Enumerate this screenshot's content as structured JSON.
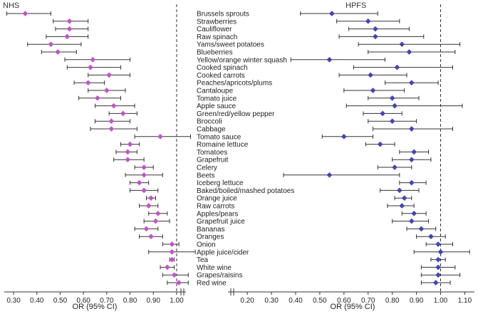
{
  "chart_data": {
    "type": "forest",
    "foods": [
      "Brussels sprouts",
      "Strawberries",
      "Cauliflower",
      "Raw spinach",
      "Yams/sweet potatoes",
      "Blueberries",
      "Yellow/orange winter squash",
      "Cooked spinach",
      "Cooked carrots",
      "Peaches/apricots/plums",
      "Cantaloupe",
      "Tomato juice",
      "Apple sauce",
      "Green/red/yellow pepper",
      "Broccoli",
      "Cabbage",
      "Tomato sauce",
      "Romaine lettuce",
      "Tomatoes",
      "Grapefruit",
      "Celery",
      "Beets",
      "Iceberg lettuce",
      "Baked/boiled/mashed potatoes",
      "Orange juice",
      "Raw carrots",
      "Apples/pears",
      "Grapefruit juice",
      "Bananas",
      "Oranges",
      "Onion",
      "Apple juice/cider",
      "Tea",
      "White wine",
      "Grapes/raisins",
      "Red wine"
    ],
    "panels": [
      {
        "title": "NHS",
        "xlabel": "OR (95% CI)",
        "ticks": [
          0.3,
          0.4,
          0.5,
          0.6,
          0.7,
          0.8,
          0.9,
          1.0
        ],
        "tick_labels": [
          "0.30",
          "0.40",
          "0.50",
          "0.60",
          "0.70",
          "0.80",
          "0.90",
          "1.00"
        ],
        "xlim": [
          0.26,
          1.04
        ],
        "reference_line": 1.0,
        "color": "#c054c8",
        "or": [
          0.35,
          0.54,
          0.54,
          0.53,
          0.46,
          0.49,
          0.64,
          0.63,
          0.71,
          0.62,
          0.7,
          0.66,
          0.73,
          0.77,
          0.72,
          0.72,
          0.93,
          0.8,
          0.79,
          0.79,
          0.86,
          0.86,
          0.84,
          0.86,
          0.89,
          0.88,
          0.92,
          0.91,
          0.87,
          0.89,
          0.98,
          0.98,
          0.98,
          0.96,
          0.99,
          1.01
        ],
        "lo": [
          0.27,
          0.47,
          0.48,
          0.44,
          0.36,
          0.42,
          0.52,
          0.53,
          0.62,
          0.56,
          0.62,
          0.58,
          0.65,
          0.71,
          0.65,
          0.63,
          0.82,
          0.76,
          0.74,
          0.73,
          0.82,
          0.78,
          0.8,
          0.8,
          0.87,
          0.84,
          0.88,
          0.86,
          0.82,
          0.84,
          0.94,
          0.88,
          0.97,
          0.93,
          0.94,
          0.96
        ],
        "hi": [
          0.46,
          0.62,
          0.62,
          0.62,
          0.59,
          0.57,
          0.8,
          0.76,
          0.8,
          0.69,
          0.78,
          0.76,
          0.82,
          0.83,
          0.8,
          0.83,
          1.06,
          0.84,
          0.83,
          0.86,
          0.9,
          0.94,
          0.88,
          0.92,
          0.91,
          0.92,
          0.96,
          0.97,
          0.92,
          0.94,
          1.01,
          1.08,
          0.99,
          0.99,
          1.05,
          1.05
        ]
      },
      {
        "title": "HPFS",
        "xlabel": "OR (95% CI)",
        "ticks": [
          0.2,
          0.3,
          0.4,
          0.5,
          0.6,
          0.7,
          0.8,
          0.9,
          1.0,
          1.1
        ],
        "tick_labels": [
          "0.20",
          "0.30",
          "0.40",
          "0.50",
          "0.60",
          "0.70",
          "0.80",
          "0.90",
          "1.00",
          "1.10"
        ],
        "xlim": [
          0.12,
          1.14
        ],
        "reference_line": 1.0,
        "color": "#4146b4",
        "or": [
          0.55,
          0.7,
          0.73,
          0.73,
          0.84,
          0.87,
          0.54,
          0.82,
          0.71,
          0.88,
          0.72,
          0.8,
          0.81,
          0.76,
          0.8,
          0.88,
          0.6,
          0.75,
          0.89,
          0.88,
          0.81,
          0.54,
          0.88,
          0.83,
          0.85,
          0.84,
          0.89,
          0.88,
          0.92,
          0.96,
          0.99,
          1.0,
          0.99,
          0.99,
          0.99,
          0.98
        ],
        "lo": [
          0.42,
          0.57,
          0.62,
          0.58,
          0.66,
          0.7,
          0.38,
          0.64,
          0.58,
          0.77,
          0.6,
          0.7,
          0.61,
          0.68,
          0.7,
          0.72,
          0.51,
          0.69,
          0.83,
          0.8,
          0.74,
          0.35,
          0.83,
          0.75,
          0.81,
          0.78,
          0.84,
          0.8,
          0.86,
          0.9,
          0.94,
          0.89,
          0.96,
          0.92,
          0.92,
          0.92
        ],
        "hi": [
          0.74,
          0.83,
          0.87,
          0.93,
          1.08,
          1.06,
          0.77,
          1.05,
          0.86,
          0.99,
          0.85,
          0.91,
          1.09,
          0.84,
          0.9,
          1.05,
          0.72,
          0.81,
          0.95,
          0.96,
          0.88,
          0.83,
          0.94,
          0.91,
          0.88,
          0.89,
          0.94,
          0.95,
          0.98,
          1.02,
          1.05,
          1.12,
          1.02,
          1.06,
          1.08,
          1.04
        ]
      }
    ]
  }
}
